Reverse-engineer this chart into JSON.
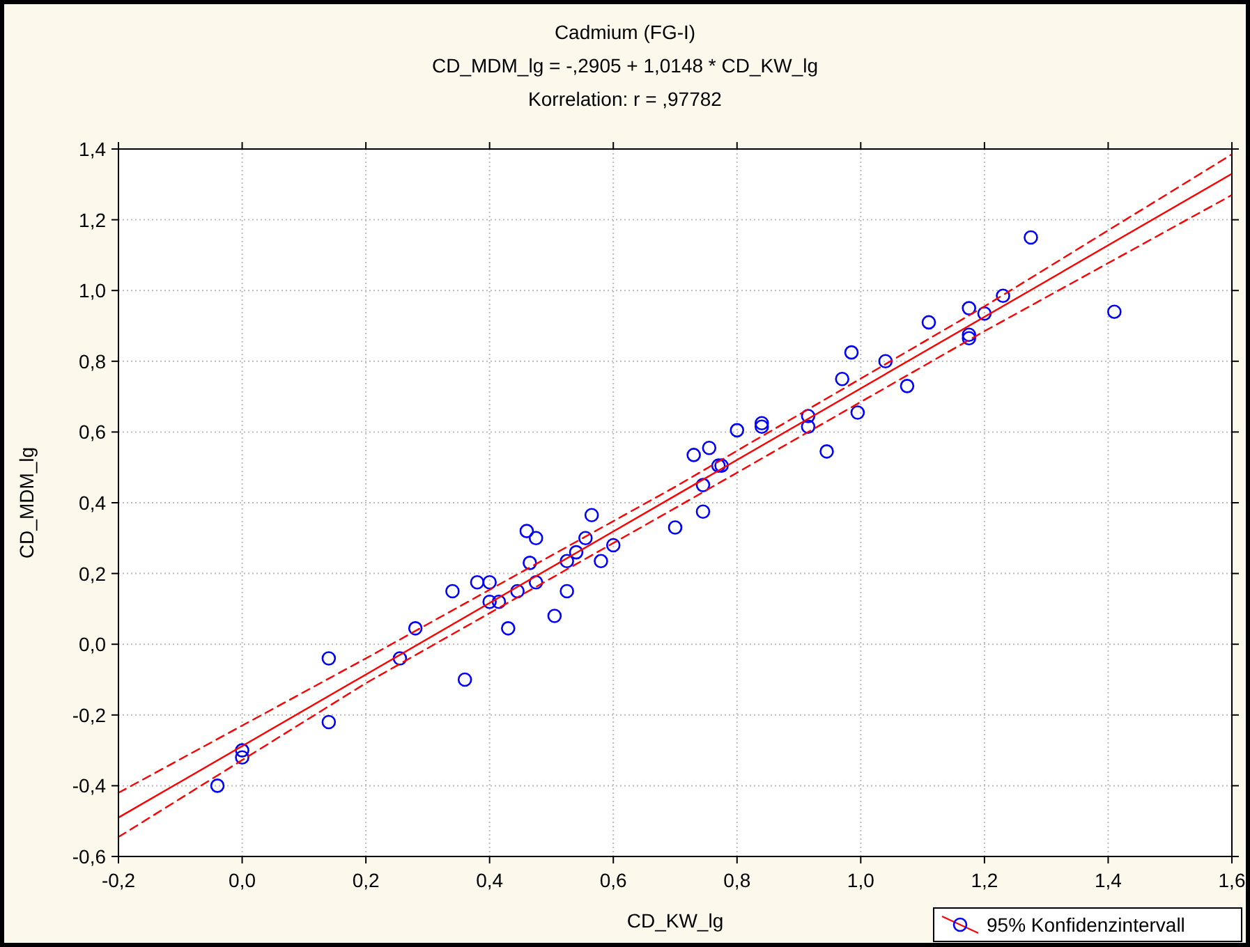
{
  "chart_data": {
    "type": "scatter",
    "title": "Cadmium (FG-I)",
    "subtitle": "CD_MDM_lg = -,2905 + 1,0148 * CD_KW_lg\nKorrelation: r = ,97782",
    "xlabel": "CD_KW_lg",
    "ylabel": "CD_MDM_lg",
    "xlim": [
      -0.2,
      1.6
    ],
    "ylim": [
      -0.6,
      1.4
    ],
    "xticks": [
      {
        "value": -0.2,
        "label": "-0,2"
      },
      {
        "value": 0,
        "label": "0,0"
      },
      {
        "value": 0.2,
        "label": "0,2"
      },
      {
        "value": 0.4,
        "label": "0,4"
      },
      {
        "value": 0.6,
        "label": "0,6"
      },
      {
        "value": 0.8,
        "label": "0,8"
      },
      {
        "value": 1,
        "label": "1,0"
      },
      {
        "value": 1.2,
        "label": "1,2"
      },
      {
        "value": 1.4,
        "label": "1,4"
      },
      {
        "value": 1.6,
        "label": "1,6"
      }
    ],
    "yticks": [
      {
        "value": -0.6,
        "label": "-0,6"
      },
      {
        "value": -0.4,
        "label": "-0,4"
      },
      {
        "value": -0.2,
        "label": "-0,2"
      },
      {
        "value": 0,
        "label": "0,0"
      },
      {
        "value": 0.2,
        "label": "0,2"
      },
      {
        "value": 0.4,
        "label": "0,4"
      },
      {
        "value": 0.6,
        "label": "0,6"
      },
      {
        "value": 0.8,
        "label": "0,8"
      },
      {
        "value": 1,
        "label": "1,0"
      },
      {
        "value": 1.2,
        "label": "1,2"
      },
      {
        "value": 1.4,
        "label": "1,4"
      }
    ],
    "grid": true,
    "legend": "bottom right",
    "series": [
      {
        "name": "95% Konfidenzintervall",
        "color": "#0000ff",
        "marker": "circle",
        "x": [
          -0.04,
          0.0,
          0.0,
          0.14,
          0.14,
          0.255,
          0.28,
          0.34,
          0.36,
          0.38,
          0.4,
          0.4,
          0.415,
          0.43,
          0.445,
          0.46,
          0.465,
          0.475,
          0.475,
          0.505,
          0.525,
          0.525,
          0.54,
          0.555,
          0.565,
          0.58,
          0.6,
          0.7,
          0.73,
          0.745,
          0.745,
          0.755,
          0.77,
          0.775,
          0.8,
          0.84,
          0.84,
          0.915,
          0.915,
          0.945,
          0.97,
          0.985,
          0.995,
          1.04,
          1.075,
          1.11,
          1.175,
          1.175,
          1.175,
          1.2,
          1.23,
          1.275,
          1.41
        ],
        "values": [
          -0.4,
          -0.3,
          -0.32,
          -0.04,
          -0.22,
          -0.04,
          0.045,
          0.15,
          -0.1,
          0.175,
          0.175,
          0.12,
          0.12,
          0.045,
          0.15,
          0.32,
          0.23,
          0.3,
          0.175,
          0.08,
          0.235,
          0.15,
          0.26,
          0.3,
          0.365,
          0.235,
          0.28,
          0.33,
          0.535,
          0.45,
          0.375,
          0.555,
          0.505,
          0.505,
          0.605,
          0.615,
          0.625,
          0.645,
          0.615,
          0.545,
          0.75,
          0.825,
          0.655,
          0.8,
          0.73,
          0.91,
          0.95,
          0.865,
          0.875,
          0.935,
          0.985,
          1.15,
          0.94
        ]
      },
      {
        "type": "line",
        "color": "#ff0000",
        "marker": "none",
        "line_style": "solid",
        "x": [
          -0.2,
          1.6
        ],
        "values": [
          -0.49,
          1.33
        ]
      },
      {
        "type": "line",
        "color": "#ff0000",
        "marker": "none",
        "line_style": "dashed",
        "x": [
          -0.2,
          0.2,
          0.7,
          1.2,
          1.6
        ],
        "values": [
          -0.42,
          -0.04,
          0.445,
          0.955,
          1.385
        ]
      },
      {
        "type": "line",
        "color": "#ff0000",
        "marker": "none",
        "line_style": "dashed",
        "x": [
          -0.2,
          0.2,
          0.7,
          1.2,
          1.6
        ],
        "values": [
          -0.545,
          -0.11,
          0.385,
          0.885,
          1.27
        ]
      }
    ]
  }
}
